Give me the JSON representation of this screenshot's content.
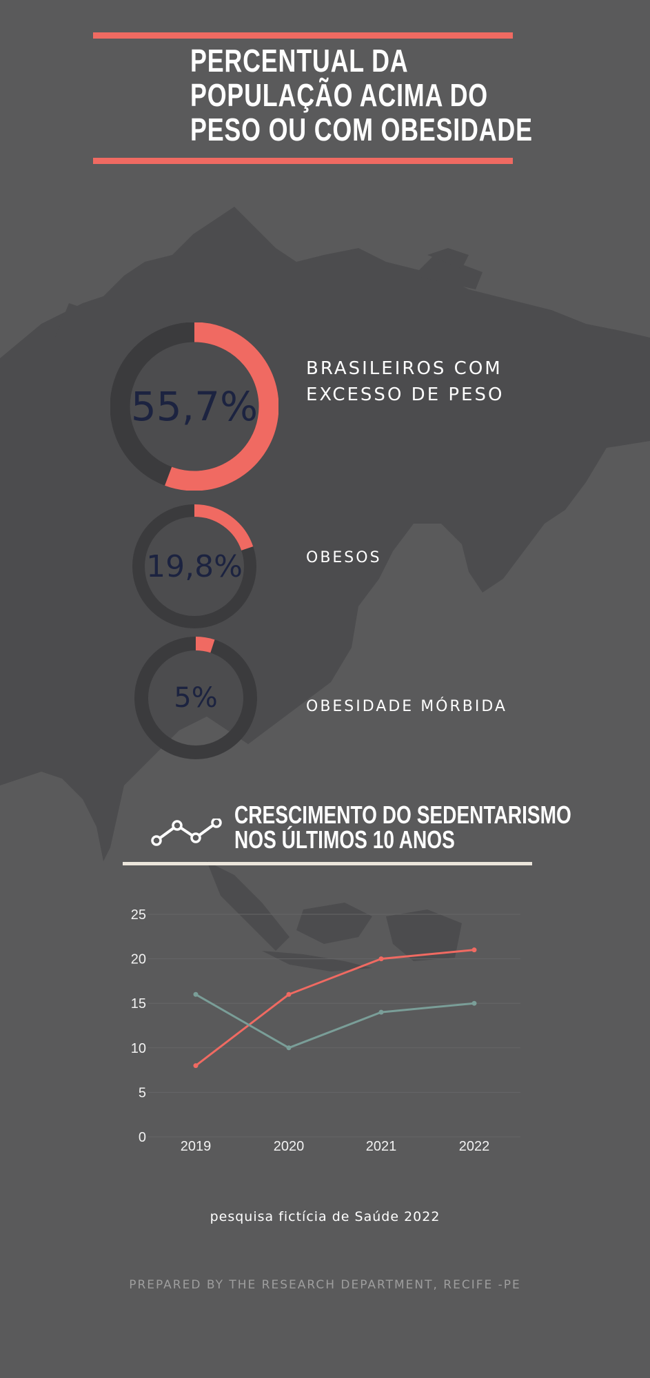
{
  "header": {
    "title_lines": [
      "PERCENTUAL DA",
      "POPULAÇÃO ACIMA DO",
      "PESO OU COM OBESIDADE"
    ]
  },
  "stats": [
    {
      "value": 55.7,
      "display": "55,7%",
      "label_lines": [
        "BRASILEIROS COM",
        "EXCESSO DE PESO"
      ]
    },
    {
      "value": 19.8,
      "display": "19,8%",
      "label_lines": [
        "OBESOS"
      ]
    },
    {
      "value": 5,
      "display": "5%",
      "label_lines": [
        "OBESIDADE MÓRBIDA"
      ]
    }
  ],
  "section": {
    "title_lines": [
      "CRESCIMENTO DO SEDENTARISMO",
      "NOS ÚLTIMOS 10 ANOS"
    ],
    "icon": "line-chart-icon"
  },
  "chart_data": {
    "type": "line",
    "categories": [
      "2019",
      "2020",
      "2021",
      "2022"
    ],
    "series": [
      {
        "values": [
          8,
          16,
          20,
          21
        ],
        "color": "#f06a62"
      },
      {
        "values": [
          16,
          10,
          14,
          15
        ],
        "color": "#7a9e98"
      }
    ],
    "ylim": [
      0,
      25
    ],
    "yticks": [
      0,
      5,
      10,
      15,
      20,
      25
    ],
    "grid": true
  },
  "footer": {
    "source": "pesquisa fictícia de Saúde 2022",
    "prepared_by": "PREPARED BY THE RESEARCH DEPARTMENT, RECIFE -PE"
  },
  "colors": {
    "background": "#5a5a5b",
    "map": "#4c4c4e",
    "accent": "#f06a62",
    "donut_track": "#3b3b3d",
    "donut_text": "#1c2340"
  }
}
